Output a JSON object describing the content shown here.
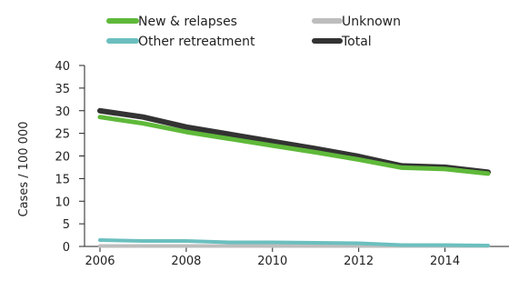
{
  "chart_data": {
    "type": "line",
    "title": "",
    "xlabel": "",
    "ylabel": "Cases / 100 000",
    "x": [
      2006,
      2007,
      2008,
      2009,
      2010,
      2011,
      2012,
      2013,
      2014,
      2015
    ],
    "xticks": [
      2006,
      2008,
      2010,
      2012,
      2014
    ],
    "xlim": [
      2006,
      2015
    ],
    "yticks": [
      0,
      5,
      10,
      15,
      20,
      25,
      30,
      35,
      40
    ],
    "ylim": [
      0,
      40
    ],
    "grid": false,
    "legend_position": "top",
    "series": [
      {
        "name": "New & relapses",
        "color": "#5fb93a",
        "values": [
          28.6,
          27.2,
          25.3,
          23.8,
          22.3,
          20.8,
          19.2,
          17.4,
          17.1,
          16.1
        ]
      },
      {
        "name": "Other retreatment",
        "color": "#6cbfbf",
        "values": [
          1.4,
          1.2,
          1.2,
          0.9,
          0.9,
          0.8,
          0.7,
          0.3,
          0.3,
          0.2
        ]
      },
      {
        "name": "Unknown",
        "color": "#bdbdbd",
        "values": [
          0.1,
          0.1,
          0.1,
          0.1,
          0.1,
          0.1,
          0.1,
          0.1,
          0.1,
          0.1
        ]
      },
      {
        "name": "Total",
        "color": "#333333",
        "values": [
          30.0,
          28.6,
          26.4,
          24.8,
          23.2,
          21.6,
          19.9,
          17.8,
          17.5,
          16.4
        ]
      }
    ],
    "legend": [
      {
        "name": "New & relapses",
        "color": "#5fb93a"
      },
      {
        "name": "Unknown",
        "color": "#bdbdbd"
      },
      {
        "name": "Other retreatment",
        "color": "#6cbfbf"
      },
      {
        "name": "Total",
        "color": "#333333"
      }
    ]
  }
}
